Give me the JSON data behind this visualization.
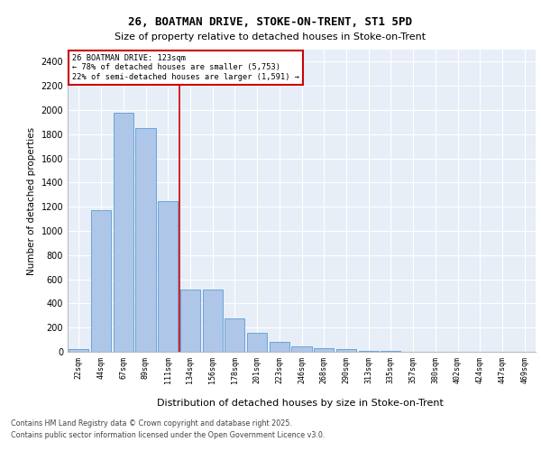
{
  "title1": "26, BOATMAN DRIVE, STOKE-ON-TRENT, ST1 5PD",
  "title2": "Size of property relative to detached houses in Stoke-on-Trent",
  "xlabel": "Distribution of detached houses by size in Stoke-on-Trent",
  "ylabel": "Number of detached properties",
  "categories": [
    "22sqm",
    "44sqm",
    "67sqm",
    "89sqm",
    "111sqm",
    "134sqm",
    "156sqm",
    "178sqm",
    "201sqm",
    "223sqm",
    "246sqm",
    "268sqm",
    "290sqm",
    "313sqm",
    "335sqm",
    "357sqm",
    "380sqm",
    "402sqm",
    "424sqm",
    "447sqm",
    "469sqm"
  ],
  "values": [
    25,
    1175,
    1975,
    1850,
    1245,
    515,
    515,
    275,
    155,
    85,
    45,
    30,
    25,
    10,
    5,
    3,
    2,
    1,
    1,
    1,
    1
  ],
  "bar_color": "#aec6e8",
  "bar_edge_color": "#5b9bd5",
  "vline_color": "#cc0000",
  "annotation_title": "26 BOATMAN DRIVE: 123sqm",
  "annotation_line1": "← 78% of detached houses are smaller (5,753)",
  "annotation_line2": "22% of semi-detached houses are larger (1,591) →",
  "annotation_box_color": "#cc0000",
  "ylim": [
    0,
    2500
  ],
  "yticks": [
    0,
    200,
    400,
    600,
    800,
    1000,
    1200,
    1400,
    1600,
    1800,
    2000,
    2200,
    2400
  ],
  "footnote1": "Contains HM Land Registry data © Crown copyright and database right 2025.",
  "footnote2": "Contains public sector information licensed under the Open Government Licence v3.0.",
  "bg_color": "#e8eef7",
  "fig_bg_color": "#ffffff",
  "vline_pos": 4.5
}
